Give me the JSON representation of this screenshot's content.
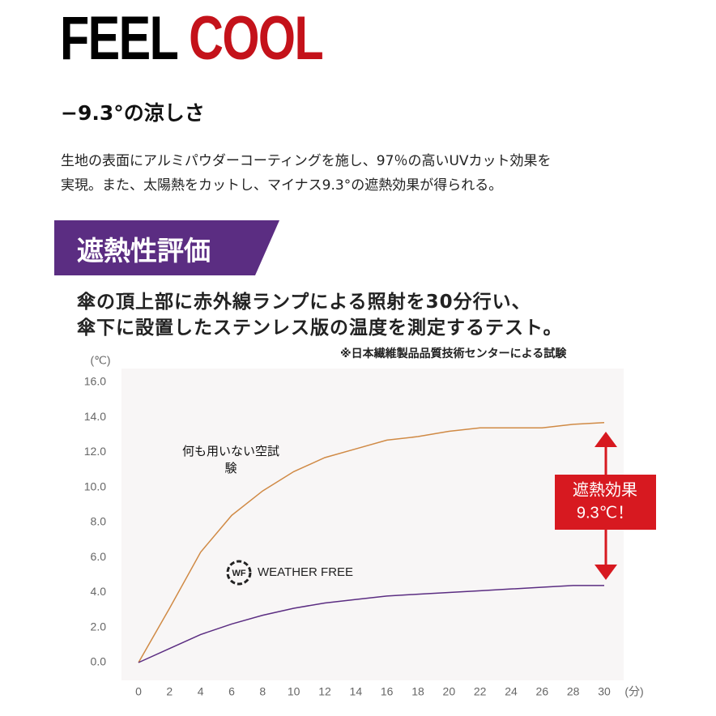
{
  "header": {
    "title_black": "FEEL",
    "title_red": "COOL",
    "subtitle": "−9.3°の涼しさ",
    "paragraph": [
      "生地の表面にアルミパウダーコーティングを施し、97％の高いUVカット効果を",
      "実現。また、太陽熱をカットし、マイナス9.3°の遮熱効果が得られる。"
    ]
  },
  "section": {
    "banner": "遮熱性評価",
    "description": [
      "傘の頂上部に赤外線ランプによる照射を30分行い、",
      "傘下に設置したステンレス版の温度を測定するテスト。"
    ],
    "note": "※日本繊維製品品質技術センターによる試験"
  },
  "chart_data": {
    "type": "line",
    "y_unit": "(℃)",
    "x_unit": "(分)",
    "x": [
      0,
      2,
      4,
      6,
      8,
      10,
      12,
      14,
      16,
      18,
      20,
      22,
      24,
      26,
      28,
      30
    ],
    "series": [
      {
        "name": "何も用いない空試験",
        "color": "#d08a45",
        "values": [
          0,
          3.1,
          6.3,
          8.4,
          9.8,
          10.9,
          11.7,
          12.2,
          12.7,
          12.9,
          13.2,
          13.4,
          13.4,
          13.4,
          13.6,
          13.7
        ]
      },
      {
        "name": "WEATHER FREE",
        "color": "#5b2d82",
        "values": [
          0,
          0.8,
          1.6,
          2.2,
          2.7,
          3.1,
          3.4,
          3.6,
          3.8,
          3.9,
          4.0,
          4.1,
          4.2,
          4.3,
          4.4,
          4.4
        ]
      }
    ],
    "logo_text": "WF",
    "annotation": [
      "遮熱効果",
      "9.3℃！"
    ],
    "annotation_color": "#d71920",
    "xlim": [
      0,
      30
    ],
    "xticks": [
      0,
      2,
      4,
      6,
      8,
      10,
      12,
      14,
      16,
      18,
      20,
      22,
      24,
      26,
      28,
      30
    ],
    "ylim": [
      0,
      16
    ],
    "yticks": [
      {
        "value": 0,
        "label": "0.0"
      },
      {
        "value": 2,
        "label": "2.0"
      },
      {
        "value": 4,
        "label": "4.0"
      },
      {
        "value": 6,
        "label": "6.0"
      },
      {
        "value": 8,
        "label": "8.0"
      },
      {
        "value": 10,
        "label": "10.0"
      },
      {
        "value": 12,
        "label": "12.0"
      },
      {
        "value": 14,
        "label": "14.0"
      },
      {
        "value": 16,
        "label": "16.0"
      }
    ]
  }
}
